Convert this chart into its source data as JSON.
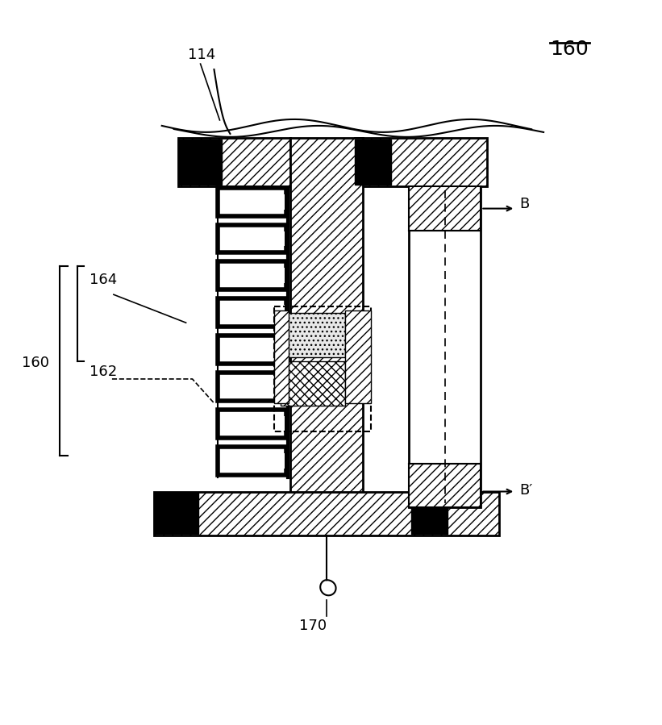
{
  "fig_width": 8.21,
  "fig_height": 8.99,
  "bg_color": "#ffffff",
  "line_color": "#000000",
  "labels": {
    "top_ref": "114",
    "bottom_ref": "170",
    "fig_ref": "160",
    "label_160": "160",
    "label_164": "164",
    "label_162": "162",
    "label_B": "B",
    "label_Bprime": "B′"
  }
}
